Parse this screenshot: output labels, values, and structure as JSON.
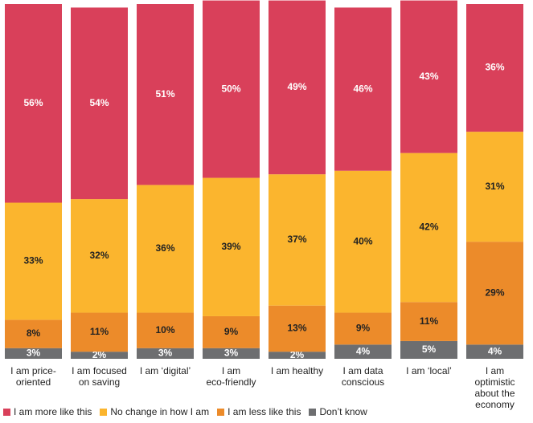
{
  "chart_data": {
    "type": "stacked_bar",
    "categories": [
      "I am price-\noriented",
      "I am focused\non saving",
      "I am ‘digital’",
      "I am\neco-friendly",
      "I am healthy",
      "I am data\nconscious",
      "I am ‘local’",
      "I am\noptimistic\nabout the\neconomy"
    ],
    "series": [
      {
        "name": "I am more like this",
        "color": "#d9405a",
        "values": [
          56,
          54,
          51,
          50,
          49,
          46,
          43,
          36
        ],
        "value_labels": [
          "56%",
          "54%",
          "51%",
          "50%",
          "49%",
          "46%",
          "43%",
          "36%"
        ]
      },
      {
        "name": "No change in how I am",
        "color": "#fbb52e",
        "values": [
          33,
          32,
          36,
          39,
          37,
          40,
          42,
          31
        ],
        "value_labels": [
          "33%",
          "32%",
          "36%",
          "39%",
          "37%",
          "40%",
          "42%",
          "31%"
        ]
      },
      {
        "name": "I am less like this",
        "color": "#ec8b2a",
        "values": [
          8,
          11,
          10,
          9,
          13,
          9,
          11,
          29
        ],
        "value_labels": [
          "8%",
          "11%",
          "10%",
          "9%",
          "13%",
          "9%",
          "11%",
          "29%"
        ]
      },
      {
        "name": "Don’t know",
        "color": "#6d6e70",
        "values": [
          3,
          2,
          3,
          3,
          2,
          4,
          5,
          4
        ],
        "value_labels": [
          "3%",
          "2%",
          "3%",
          "3%",
          "2%",
          "4%",
          "5%",
          "4%"
        ]
      }
    ],
    "ylim": [
      0,
      100
    ],
    "legend": "bottom-left"
  }
}
